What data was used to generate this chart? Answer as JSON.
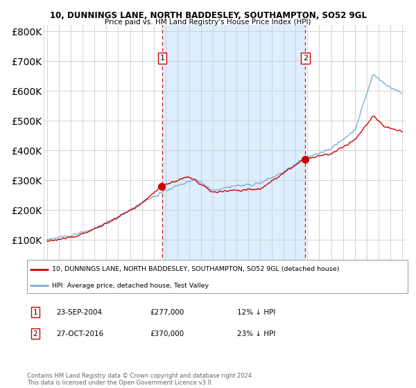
{
  "title1": "10, DUNNINGS LANE, NORTH BADDESLEY, SOUTHAMPTON, SO52 9GL",
  "title2": "Price paid vs. HM Land Registry's House Price Index (HPI)",
  "legend_line1": "10, DUNNINGS LANE, NORTH BADDESLEY, SOUTHAMPTON, SO52 9GL (detached house)",
  "legend_line2": "HPI: Average price, detached house, Test Valley",
  "sale1_date": "23-SEP-2004",
  "sale1_price": "£277,000",
  "sale1_hpi": "12% ↓ HPI",
  "sale1_year": 2004.73,
  "sale1_value": 277000,
  "sale2_date": "27-OCT-2016",
  "sale2_price": "£370,000",
  "sale2_hpi": "23% ↓ HPI",
  "sale2_year": 2016.82,
  "sale2_value": 370000,
  "hpi_color": "#7aaed6",
  "hpi_fill_color": "#ddeeff",
  "sale_color": "#cc0000",
  "vline_color": "#cc0000",
  "background_color": "#ffffff",
  "grid_color": "#cccccc",
  "footer": "Contains HM Land Registry data © Crown copyright and database right 2024.\nThis data is licensed under the Open Government Licence v3.0.",
  "ylim": [
    0,
    820000
  ],
  "yticks": [
    0,
    100000,
    200000,
    300000,
    400000,
    500000,
    600000,
    700000,
    800000
  ],
  "xstart": 1995,
  "xend": 2025
}
